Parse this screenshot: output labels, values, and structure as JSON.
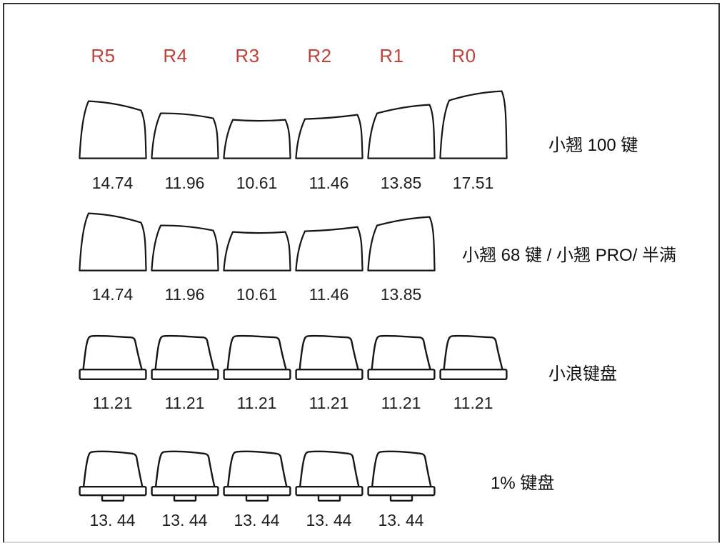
{
  "page": {
    "background": "#ffffff",
    "frame_color": "#333333",
    "accent_red": "#c2403a",
    "ink": "#161616"
  },
  "header": {
    "columns": [
      "R5",
      "R4",
      "R3",
      "R2",
      "R1",
      "R0"
    ]
  },
  "rows": [
    {
      "id": "xiaoqiao-100",
      "label": "小翘 100 键",
      "keys": [
        {
          "column": "R5",
          "shape": "R5",
          "value": "14.74"
        },
        {
          "column": "R4",
          "shape": "R4",
          "value": "11.96"
        },
        {
          "column": "R3",
          "shape": "R3",
          "value": "10.61"
        },
        {
          "column": "R2",
          "shape": "R2",
          "value": "11.46"
        },
        {
          "column": "R1",
          "shape": "R1",
          "value": "13.85"
        },
        {
          "column": "R0",
          "shape": "R0",
          "value": "17.51"
        }
      ]
    },
    {
      "id": "xiaoqiao-68",
      "label": "小翘 68 键 / 小翘 PRO/ 半满",
      "keys": [
        {
          "column": "R5",
          "shape": "R5",
          "value": "14.74"
        },
        {
          "column": "R4",
          "shape": "R4",
          "value": "11.96"
        },
        {
          "column": "R3",
          "shape": "R3",
          "value": "10.61"
        },
        {
          "column": "R2",
          "shape": "R2",
          "value": "11.46"
        },
        {
          "column": "R1",
          "shape": "R1",
          "value": "13.85"
        }
      ]
    },
    {
      "id": "xiaolang",
      "label": "小浪键盘",
      "keys": [
        {
          "column": "R5",
          "shape": "flat-skirt",
          "value": "11.21"
        },
        {
          "column": "R4",
          "shape": "flat-skirt",
          "value": "11.21"
        },
        {
          "column": "R3",
          "shape": "flat-skirt",
          "value": "11.21"
        },
        {
          "column": "R2",
          "shape": "flat-skirt",
          "value": "11.21"
        },
        {
          "column": "R1",
          "shape": "flat-skirt",
          "value": "11.21"
        },
        {
          "column": "R0",
          "shape": "flat-skirt",
          "value": "11.21"
        }
      ]
    },
    {
      "id": "one-percent",
      "label": "1% 键盘",
      "keys": [
        {
          "column": "R5",
          "shape": "flat-stem",
          "value": "13. 44"
        },
        {
          "column": "R4",
          "shape": "flat-stem",
          "value": "13. 44"
        },
        {
          "column": "R3",
          "shape": "flat-stem",
          "value": "13. 44"
        },
        {
          "column": "R2",
          "shape": "flat-stem",
          "value": "13. 44"
        },
        {
          "column": "R1",
          "shape": "flat-stem",
          "value": "13. 44"
        }
      ]
    }
  ]
}
